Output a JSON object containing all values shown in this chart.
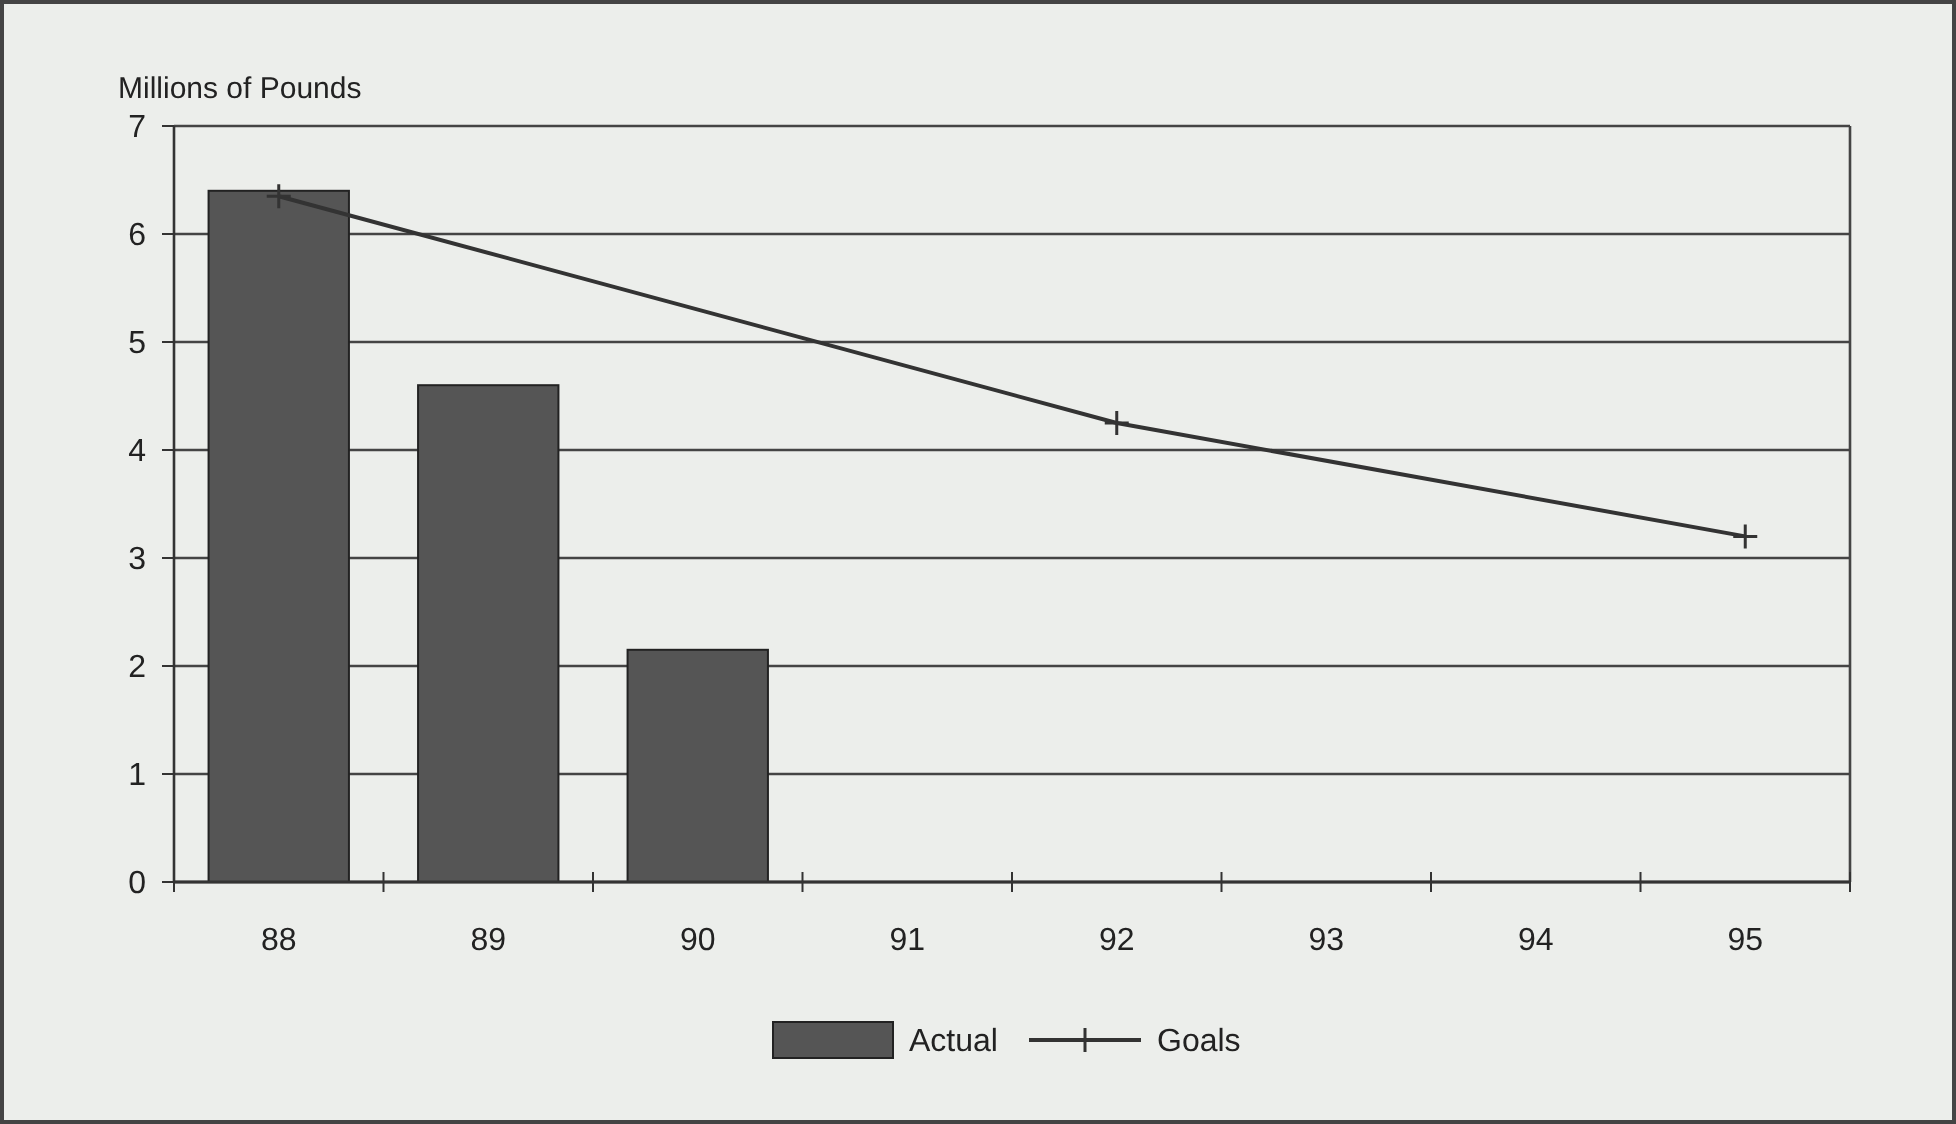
{
  "chart_data": {
    "type": "bar",
    "ylabel": "Millions of Pounds",
    "categories": [
      "88",
      "89",
      "90",
      "91",
      "92",
      "93",
      "94",
      "95"
    ],
    "series": [
      {
        "name": "Actual",
        "color": "#555555",
        "values": [
          6.4,
          4.6,
          2.15,
          null,
          null,
          null,
          null,
          null
        ]
      },
      {
        "name": "Goals",
        "type": "line",
        "color": "#333333",
        "marker": "cross",
        "values": [
          6.35,
          null,
          null,
          null,
          4.25,
          null,
          null,
          3.2
        ]
      }
    ],
    "ylim": [
      0,
      7
    ],
    "yticks": [
      0,
      1,
      2,
      3,
      4,
      5,
      6,
      7
    ],
    "grid": "y",
    "legend": "bottom"
  }
}
